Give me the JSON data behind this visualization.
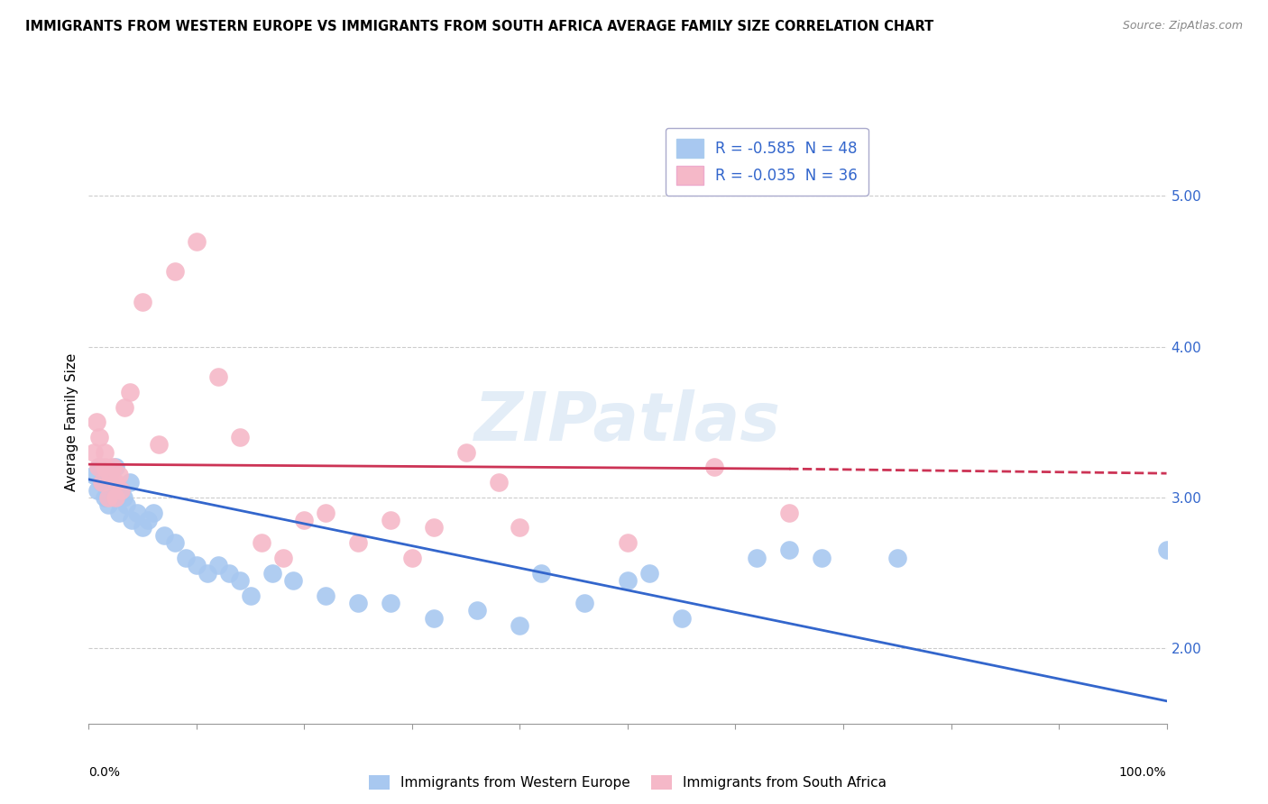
{
  "title": "IMMIGRANTS FROM WESTERN EUROPE VS IMMIGRANTS FROM SOUTH AFRICA AVERAGE FAMILY SIZE CORRELATION CHART",
  "source": "Source: ZipAtlas.com",
  "ylabel": "Average Family Size",
  "blue_label": "Immigrants from Western Europe",
  "pink_label": "Immigrants from South Africa",
  "blue_R": -0.585,
  "blue_N": 48,
  "pink_R": -0.035,
  "pink_N": 36,
  "xlim": [
    0.0,
    1.0
  ],
  "ylim": [
    1.5,
    5.5
  ],
  "yticks": [
    2.0,
    3.0,
    4.0,
    5.0
  ],
  "blue_color": "#A8C8F0",
  "pink_color": "#F5B8C8",
  "blue_line_color": "#3366CC",
  "pink_line_color": "#CC3355",
  "watermark": "ZIPatlas",
  "blue_scatter_x": [
    0.005,
    0.008,
    0.01,
    0.012,
    0.015,
    0.015,
    0.018,
    0.02,
    0.022,
    0.025,
    0.025,
    0.028,
    0.03,
    0.032,
    0.035,
    0.038,
    0.04,
    0.045,
    0.05,
    0.055,
    0.06,
    0.07,
    0.08,
    0.09,
    0.1,
    0.11,
    0.12,
    0.13,
    0.14,
    0.15,
    0.17,
    0.19,
    0.22,
    0.25,
    0.28,
    0.32,
    0.36,
    0.4,
    0.42,
    0.46,
    0.5,
    0.52,
    0.55,
    0.62,
    0.65,
    0.68,
    0.75,
    1.0
  ],
  "blue_scatter_y": [
    3.15,
    3.05,
    3.2,
    3.1,
    3.0,
    3.15,
    2.95,
    3.1,
    3.05,
    3.0,
    3.2,
    2.9,
    3.05,
    3.0,
    2.95,
    3.1,
    2.85,
    2.9,
    2.8,
    2.85,
    2.9,
    2.75,
    2.7,
    2.6,
    2.55,
    2.5,
    2.55,
    2.5,
    2.45,
    2.35,
    2.5,
    2.45,
    2.35,
    2.3,
    2.3,
    2.2,
    2.25,
    2.15,
    2.5,
    2.3,
    2.45,
    2.5,
    2.2,
    2.6,
    2.65,
    2.6,
    2.6,
    2.65
  ],
  "pink_scatter_x": [
    0.005,
    0.007,
    0.009,
    0.01,
    0.012,
    0.015,
    0.015,
    0.018,
    0.02,
    0.022,
    0.025,
    0.025,
    0.028,
    0.03,
    0.033,
    0.038,
    0.05,
    0.065,
    0.08,
    0.1,
    0.12,
    0.14,
    0.16,
    0.18,
    0.2,
    0.22,
    0.25,
    0.28,
    0.3,
    0.32,
    0.35,
    0.38,
    0.4,
    0.5,
    0.58,
    0.65
  ],
  "pink_scatter_y": [
    3.3,
    3.5,
    3.2,
    3.4,
    3.1,
    3.2,
    3.3,
    3.0,
    3.15,
    3.2,
    3.1,
    3.0,
    3.15,
    3.05,
    3.6,
    3.7,
    4.3,
    3.35,
    4.5,
    4.7,
    3.8,
    3.4,
    2.7,
    2.6,
    2.85,
    2.9,
    2.7,
    2.85,
    2.6,
    2.8,
    3.3,
    3.1,
    2.8,
    2.7,
    3.2,
    2.9
  ],
  "blue_line_x0": 0.0,
  "blue_line_x1": 1.0,
  "blue_line_y0": 3.12,
  "blue_line_y1": 1.65,
  "pink_line_x0": 0.0,
  "pink_line_x1": 0.65,
  "pink_line_xdash1": 0.65,
  "pink_line_xdash2": 1.0,
  "pink_line_y0": 3.22,
  "pink_line_y1": 3.19,
  "pink_line_ydash1": 3.19,
  "pink_line_ydash2": 3.16
}
